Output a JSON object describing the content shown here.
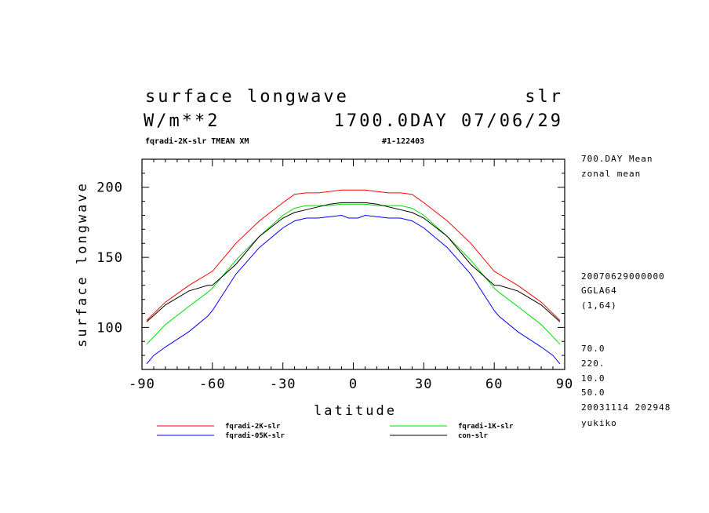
{
  "header": {
    "title_left": "surface longwave",
    "title_right": "slr",
    "units": "W/m**2",
    "time": "1700.0DAY 07/06/29",
    "subtitle_left": "fqradi-2K-slr TMEAN XM",
    "subtitle_right": "#1-122403"
  },
  "side_info": {
    "mean": "700.DAY Mean",
    "zonal": "zonal mean",
    "date": "20070629000000",
    "grid": "GGLA64",
    "index": "(1,64)",
    "v1": "70.0",
    "v2": "220.",
    "v3": "10.0",
    "v4": "50.0",
    "stamp": "20031114 202948",
    "user": "yukiko"
  },
  "chart_data": {
    "type": "line",
    "title": "surface longwave",
    "xlabel": "latitude",
    "ylabel": "surface longwave",
    "xlim": [
      -90,
      90
    ],
    "ylim": [
      70,
      220
    ],
    "x_ticks": [
      -90,
      -60,
      -30,
      0,
      30,
      60,
      90
    ],
    "x_tick_labels": [
      "-90",
      "-60",
      "-30",
      "0",
      "30",
      "60",
      "90"
    ],
    "y_ticks": [
      100,
      150,
      200
    ],
    "y_tick_labels": [
      "100",
      "150",
      "200"
    ],
    "grid": false,
    "legend_position": "bottom",
    "series": [
      {
        "name": "fqradi-2K-slr",
        "color": "#ff0000",
        "x": [
          -88,
          -80,
          -70,
          -62,
          -60,
          -50,
          -40,
          -30,
          -25,
          -20,
          -15,
          -10,
          -5,
          0,
          5,
          10,
          15,
          20,
          25,
          30,
          40,
          50,
          60,
          62,
          70,
          80,
          88
        ],
        "y": [
          105,
          118,
          130,
          138,
          140,
          160,
          176,
          189,
          195,
          196,
          196,
          197,
          198,
          198,
          198,
          197,
          196,
          196,
          195,
          189,
          176,
          160,
          140,
          138,
          130,
          118,
          105
        ]
      },
      {
        "name": "fqradi-1K-slr",
        "color": "#00dd00",
        "x": [
          -88,
          -80,
          -70,
          -62,
          -60,
          -50,
          -40,
          -30,
          -25,
          -20,
          -10,
          -5,
          0,
          5,
          10,
          20,
          25,
          30,
          40,
          50,
          60,
          62,
          70,
          80,
          88
        ],
        "y": [
          88,
          102,
          115,
          125,
          128,
          148,
          165,
          180,
          185,
          187,
          187,
          188,
          188,
          188,
          187,
          187,
          185,
          180,
          165,
          148,
          128,
          125,
          115,
          102,
          88
        ],
        "legend_column": 2
      },
      {
        "name": "fqradi-05K-slr",
        "color": "#0000ff",
        "x": [
          -88,
          -85,
          -80,
          -70,
          -62,
          -60,
          -50,
          -40,
          -30,
          -25,
          -20,
          -15,
          -10,
          -5,
          -2,
          0,
          2,
          5,
          10,
          15,
          20,
          25,
          30,
          40,
          50,
          60,
          62,
          70,
          80,
          85,
          88
        ],
        "y": [
          74,
          80,
          86,
          97,
          108,
          112,
          138,
          157,
          171,
          176,
          178,
          178,
          179,
          180,
          178,
          178,
          178,
          180,
          179,
          178,
          178,
          176,
          171,
          157,
          138,
          112,
          108,
          97,
          86,
          80,
          74
        ],
        "legend_column": 1
      },
      {
        "name": "con-slr",
        "color": "#000000",
        "x": [
          -88,
          -80,
          -70,
          -62,
          -60,
          -50,
          -40,
          -30,
          -25,
          -20,
          -10,
          -5,
          0,
          5,
          10,
          20,
          25,
          30,
          40,
          50,
          60,
          62,
          70,
          80,
          88
        ],
        "y": [
          104,
          116,
          126,
          130,
          130,
          145,
          165,
          178,
          182,
          184,
          188,
          189,
          189,
          189,
          188,
          184,
          182,
          178,
          165,
          145,
          130,
          130,
          126,
          116,
          104
        ],
        "legend_column": 2
      }
    ]
  }
}
